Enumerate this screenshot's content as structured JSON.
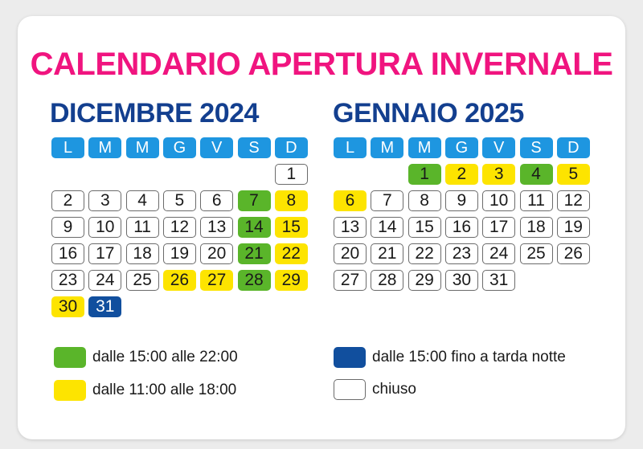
{
  "title": "CALENDARIO APERTURA INVERNALE",
  "weekdays": [
    "L",
    "M",
    "M",
    "G",
    "V",
    "S",
    "D"
  ],
  "colors": {
    "verde": "#5ab52a",
    "giallo": "#fde400",
    "blu": "#114f9e",
    "chiuso": "#ffffff",
    "title": "#f0147f",
    "month": "#133f8f",
    "header": "#1e96e0"
  },
  "months": [
    {
      "title": "DICEMBRE 2024",
      "start_weekday": 6,
      "days": [
        {
          "d": "1",
          "s": "chiuso"
        },
        {
          "d": "2",
          "s": "chiuso"
        },
        {
          "d": "3",
          "s": "chiuso"
        },
        {
          "d": "4",
          "s": "chiuso"
        },
        {
          "d": "5",
          "s": "chiuso"
        },
        {
          "d": "6",
          "s": "chiuso"
        },
        {
          "d": "7",
          "s": "verde"
        },
        {
          "d": "8",
          "s": "giallo"
        },
        {
          "d": "9",
          "s": "chiuso"
        },
        {
          "d": "10",
          "s": "chiuso"
        },
        {
          "d": "11",
          "s": "chiuso"
        },
        {
          "d": "12",
          "s": "chiuso"
        },
        {
          "d": "13",
          "s": "chiuso"
        },
        {
          "d": "14",
          "s": "verde"
        },
        {
          "d": "15",
          "s": "giallo"
        },
        {
          "d": "16",
          "s": "chiuso"
        },
        {
          "d": "17",
          "s": "chiuso"
        },
        {
          "d": "18",
          "s": "chiuso"
        },
        {
          "d": "19",
          "s": "chiuso"
        },
        {
          "d": "20",
          "s": "chiuso"
        },
        {
          "d": "21",
          "s": "verde"
        },
        {
          "d": "22",
          "s": "giallo"
        },
        {
          "d": "23",
          "s": "chiuso"
        },
        {
          "d": "24",
          "s": "chiuso"
        },
        {
          "d": "25",
          "s": "chiuso"
        },
        {
          "d": "26",
          "s": "giallo"
        },
        {
          "d": "27",
          "s": "giallo"
        },
        {
          "d": "28",
          "s": "verde"
        },
        {
          "d": "29",
          "s": "giallo"
        },
        {
          "d": "30",
          "s": "giallo"
        },
        {
          "d": "31",
          "s": "blu"
        }
      ]
    },
    {
      "title": "GENNAIO 2025",
      "start_weekday": 2,
      "days": [
        {
          "d": "1",
          "s": "verde"
        },
        {
          "d": "2",
          "s": "giallo"
        },
        {
          "d": "3",
          "s": "giallo"
        },
        {
          "d": "4",
          "s": "verde"
        },
        {
          "d": "5",
          "s": "giallo"
        },
        {
          "d": "6",
          "s": "giallo"
        },
        {
          "d": "7",
          "s": "chiuso"
        },
        {
          "d": "8",
          "s": "chiuso"
        },
        {
          "d": "9",
          "s": "chiuso"
        },
        {
          "d": "10",
          "s": "chiuso"
        },
        {
          "d": "11",
          "s": "chiuso"
        },
        {
          "d": "12",
          "s": "chiuso"
        },
        {
          "d": "13",
          "s": "chiuso"
        },
        {
          "d": "14",
          "s": "chiuso"
        },
        {
          "d": "15",
          "s": "chiuso"
        },
        {
          "d": "16",
          "s": "chiuso"
        },
        {
          "d": "17",
          "s": "chiuso"
        },
        {
          "d": "18",
          "s": "chiuso"
        },
        {
          "d": "19",
          "s": "chiuso"
        },
        {
          "d": "20",
          "s": "chiuso"
        },
        {
          "d": "21",
          "s": "chiuso"
        },
        {
          "d": "22",
          "s": "chiuso"
        },
        {
          "d": "23",
          "s": "chiuso"
        },
        {
          "d": "24",
          "s": "chiuso"
        },
        {
          "d": "25",
          "s": "chiuso"
        },
        {
          "d": "26",
          "s": "chiuso"
        },
        {
          "d": "27",
          "s": "chiuso"
        },
        {
          "d": "28",
          "s": "chiuso"
        },
        {
          "d": "29",
          "s": "chiuso"
        },
        {
          "d": "30",
          "s": "chiuso"
        },
        {
          "d": "31",
          "s": "chiuso"
        }
      ]
    }
  ],
  "legend": [
    {
      "style": "verde",
      "label": "dalle 15:00 alle 22:00"
    },
    {
      "style": "giallo",
      "label": "dalle 11:00 alle 18:00"
    },
    {
      "style": "blu",
      "label": "dalle 15:00 fino a tarda notte"
    },
    {
      "style": "chiuso",
      "label": "chiuso"
    }
  ]
}
